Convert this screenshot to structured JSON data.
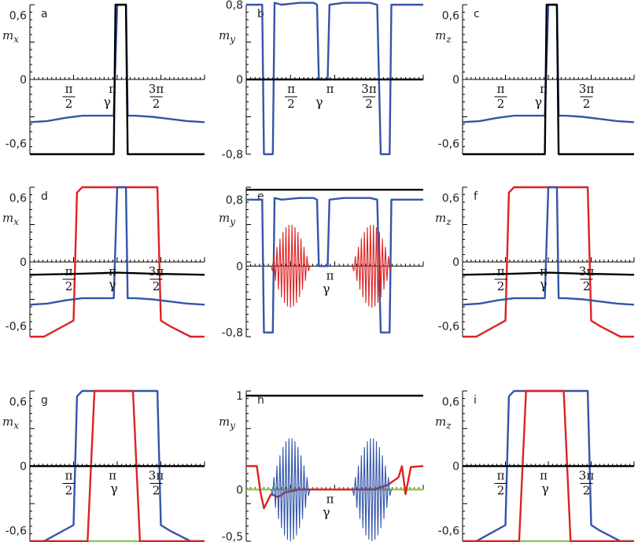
{
  "chart_data": [
    {
      "id": "a",
      "type": "line",
      "ylabel": "m",
      "ylabel_sub": "x",
      "letter": "a",
      "ylim": [
        -0.7,
        0.7
      ],
      "yticks": [
        "0,6",
        "0",
        "-0,6"
      ],
      "ytick_values": [
        0.6,
        0,
        -0.6
      ],
      "xticks": [
        {
          "num": "π",
          "den": "2",
          "x": 0.25
        },
        {
          "num": "π",
          "den": "",
          "x": 0.5
        },
        {
          "num": "3π",
          "den": "2",
          "x": 0.75
        }
      ],
      "gamma_x": 0.46,
      "series": [
        {
          "color": "#3355aa",
          "x": [
            0,
            0.1,
            0.2,
            0.3,
            0.4,
            0.48,
            0.5,
            0.55,
            0.56,
            0.6,
            0.7,
            0.8,
            0.9,
            1.0
          ],
          "y": [
            -0.4,
            -0.39,
            -0.36,
            -0.34,
            -0.34,
            -0.34,
            0.7,
            0.7,
            -0.34,
            -0.34,
            -0.35,
            -0.37,
            -0.39,
            -0.4
          ]
        },
        {
          "color": "#000000",
          "x": [
            0,
            0.48,
            0.49,
            0.55,
            0.56,
            1.0
          ],
          "y": [
            -0.7,
            -0.7,
            0.7,
            0.7,
            -0.7,
            -0.7
          ]
        }
      ]
    },
    {
      "id": "b",
      "type": "line",
      "ylabel": "m",
      "ylabel_sub": "y",
      "letter": "b",
      "ylim": [
        -0.8,
        0.8
      ],
      "yticks": [
        "0,8",
        "0",
        "-0,8"
      ],
      "ytick_values": [
        0.8,
        0,
        -0.8
      ],
      "xticks": [
        {
          "num": "π",
          "den": "2",
          "x": 0.28
        },
        {
          "num": "π",
          "den": "",
          "x": 0.5
        },
        {
          "num": "3π",
          "den": "2",
          "x": 0.72
        }
      ],
      "gamma_x": 0.43,
      "series": [
        {
          "color": "#3355aa",
          "x": [
            0,
            0.09,
            0.1,
            0.15,
            0.16,
            0.2,
            0.3,
            0.38,
            0.4,
            0.41,
            0.46,
            0.47,
            0.55,
            0.7,
            0.74,
            0.76,
            0.81,
            0.82,
            0.85,
            1.0
          ],
          "y": [
            0.8,
            0.8,
            -0.8,
            -0.8,
            0.82,
            0.8,
            0.82,
            0.82,
            0.8,
            0.0,
            0.0,
            0.8,
            0.82,
            0.82,
            0.8,
            -0.8,
            -0.8,
            0.8,
            0.8,
            0.8
          ]
        },
        {
          "color": "#000000",
          "x": [
            0,
            1.0
          ],
          "y": [
            0,
            0
          ]
        }
      ]
    },
    {
      "id": "c",
      "type": "line",
      "ylabel": "m",
      "ylabel_sub": "z",
      "letter": "c",
      "ylim": [
        -0.7,
        0.7
      ],
      "yticks": [
        "0,6",
        "0",
        "-0,6"
      ],
      "ytick_values": [
        0.6,
        0,
        -0.6
      ],
      "xticks": [
        {
          "num": "π",
          "den": "2",
          "x": 0.25
        },
        {
          "num": "π",
          "den": "",
          "x": 0.5
        },
        {
          "num": "3π",
          "den": "2",
          "x": 0.75
        }
      ],
      "gamma_x": 0.46,
      "series": [
        {
          "color": "#3355aa",
          "x": [
            0,
            0.1,
            0.2,
            0.3,
            0.4,
            0.48,
            0.5,
            0.55,
            0.56,
            0.6,
            0.7,
            0.8,
            0.9,
            1.0
          ],
          "y": [
            -0.4,
            -0.39,
            -0.36,
            -0.34,
            -0.34,
            -0.34,
            0.7,
            0.7,
            -0.34,
            -0.34,
            -0.35,
            -0.37,
            -0.39,
            -0.4
          ]
        },
        {
          "color": "#000000",
          "x": [
            0,
            0.48,
            0.49,
            0.55,
            0.56,
            1.0
          ],
          "y": [
            -0.7,
            -0.7,
            0.7,
            0.7,
            -0.7,
            -0.7
          ]
        }
      ]
    },
    {
      "id": "d",
      "type": "line",
      "ylabel": "m",
      "ylabel_sub": "x",
      "letter": "d",
      "ylim": [
        -0.7,
        0.7
      ],
      "yticks": [
        "0,6",
        "0",
        "-0,6"
      ],
      "ytick_values": [
        0.6,
        0,
        -0.6
      ],
      "xticks": [
        {
          "num": "π",
          "den": "2",
          "x": 0.25
        },
        {
          "num": "π",
          "den": "",
          "x": 0.5
        },
        {
          "num": "3π",
          "den": "2",
          "x": 0.75
        }
      ],
      "gamma_x": 0.49,
      "series": [
        {
          "color": "#dd2222",
          "x": [
            0,
            0.08,
            0.25,
            0.27,
            0.3,
            0.4,
            0.7,
            0.73,
            0.75,
            0.8,
            0.92,
            1.0
          ],
          "y": [
            -0.7,
            -0.7,
            -0.55,
            0.65,
            0.7,
            0.7,
            0.7,
            0.7,
            -0.55,
            -0.6,
            -0.7,
            -0.7
          ]
        },
        {
          "color": "#3355aa",
          "x": [
            0,
            0.1,
            0.2,
            0.3,
            0.4,
            0.48,
            0.5,
            0.55,
            0.56,
            0.6,
            0.7,
            0.8,
            0.9,
            1.0
          ],
          "y": [
            -0.4,
            -0.39,
            -0.36,
            -0.34,
            -0.34,
            -0.34,
            0.7,
            0.7,
            -0.34,
            -0.34,
            -0.35,
            -0.37,
            -0.39,
            -0.4
          ]
        },
        {
          "color": "#000000",
          "x": [
            0,
            0.3,
            0.5,
            0.7,
            1.0
          ],
          "y": [
            -0.12,
            -0.11,
            -0.1,
            -0.11,
            -0.12
          ]
        }
      ]
    },
    {
      "id": "e",
      "type": "line",
      "ylabel": "m",
      "ylabel_sub": "y",
      "letter": "e",
      "ylim": [
        -0.85,
        0.95
      ],
      "yticks": [
        "0,8",
        "0",
        "-0,8"
      ],
      "ytick_values": [
        0.8,
        0,
        -0.8
      ],
      "xticks": [
        {
          "num": "π",
          "den": "",
          "x": 0.5
        }
      ],
      "gamma_x": 0.47,
      "osc": "red",
      "series": [
        {
          "color": "#000000",
          "x": [
            0,
            1.0
          ],
          "y": [
            0.92,
            0.92
          ]
        },
        {
          "color": "#3355aa",
          "x": [
            0,
            0.09,
            0.1,
            0.15,
            0.16,
            0.2,
            0.3,
            0.38,
            0.4,
            0.41,
            0.46,
            0.47,
            0.55,
            0.7,
            0.74,
            0.76,
            0.81,
            0.82,
            0.85,
            1.0
          ],
          "y": [
            0.8,
            0.8,
            -0.8,
            -0.8,
            0.82,
            0.8,
            0.82,
            0.82,
            0.8,
            0.0,
            0.0,
            0.8,
            0.82,
            0.82,
            0.8,
            -0.8,
            -0.8,
            0.8,
            0.8,
            0.8
          ]
        }
      ]
    },
    {
      "id": "f",
      "type": "line",
      "ylabel": "m",
      "ylabel_sub": "z",
      "letter": "f",
      "ylim": [
        -0.7,
        0.7
      ],
      "yticks": [
        "0,6",
        "0",
        "-0,6"
      ],
      "ytick_values": [
        0.6,
        0,
        -0.6
      ],
      "xticks": [
        {
          "num": "π",
          "den": "2",
          "x": 0.25
        },
        {
          "num": "π",
          "den": "",
          "x": 0.5
        },
        {
          "num": "3π",
          "den": "2",
          "x": 0.75
        }
      ],
      "gamma_x": 0.49,
      "series": [
        {
          "color": "#dd2222",
          "x": [
            0,
            0.08,
            0.25,
            0.27,
            0.3,
            0.4,
            0.7,
            0.73,
            0.75,
            0.8,
            0.92,
            1.0
          ],
          "y": [
            -0.7,
            -0.7,
            -0.55,
            0.65,
            0.7,
            0.7,
            0.7,
            0.7,
            -0.55,
            -0.6,
            -0.7,
            -0.7
          ]
        },
        {
          "color": "#3355aa",
          "x": [
            0,
            0.1,
            0.2,
            0.3,
            0.4,
            0.48,
            0.5,
            0.55,
            0.56,
            0.6,
            0.7,
            0.8,
            0.9,
            1.0
          ],
          "y": [
            -0.4,
            -0.39,
            -0.36,
            -0.34,
            -0.34,
            -0.34,
            0.7,
            0.7,
            -0.34,
            -0.34,
            -0.35,
            -0.37,
            -0.39,
            -0.4
          ]
        },
        {
          "color": "#000000",
          "x": [
            0,
            0.3,
            0.5,
            0.7,
            1.0
          ],
          "y": [
            -0.12,
            -0.11,
            -0.1,
            -0.11,
            -0.12
          ]
        }
      ]
    },
    {
      "id": "g",
      "type": "line",
      "ylabel": "m",
      "ylabel_sub": "x",
      "letter": "g",
      "ylim": [
        -0.7,
        0.7
      ],
      "yticks": [
        "0,6",
        "0",
        "-0,6"
      ],
      "ytick_values": [
        0.6,
        0,
        -0.6
      ],
      "xticks": [
        {
          "num": "π",
          "den": "2",
          "x": 0.25
        },
        {
          "num": "π",
          "den": "",
          "x": 0.5
        },
        {
          "num": "3π",
          "den": "2",
          "x": 0.75
        }
      ],
      "gamma_x": 0.5,
      "series": [
        {
          "color": "#88cc44",
          "x": [
            0,
            1.0
          ],
          "y": [
            -0.7,
            -0.7
          ]
        },
        {
          "color": "#3355aa",
          "x": [
            0,
            0.08,
            0.25,
            0.27,
            0.3,
            0.4,
            0.7,
            0.73,
            0.75,
            0.8,
            0.92,
            1.0
          ],
          "y": [
            -0.7,
            -0.7,
            -0.55,
            0.65,
            0.7,
            0.7,
            0.7,
            0.7,
            -0.55,
            -0.6,
            -0.7,
            -0.7
          ]
        },
        {
          "color": "#dd2222",
          "x": [
            0,
            0.33,
            0.37,
            0.38,
            0.58,
            0.59,
            0.63,
            1.0
          ],
          "y": [
            -0.7,
            -0.7,
            0.7,
            0.7,
            0.7,
            0.7,
            -0.7,
            -0.7
          ]
        },
        {
          "color": "#000000",
          "x": [
            0,
            1.0
          ],
          "y": [
            0,
            0
          ]
        }
      ]
    },
    {
      "id": "h",
      "type": "line",
      "ylabel": "m",
      "ylabel_sub": "y",
      "letter": "h",
      "ylim": [
        -0.55,
        1.05
      ],
      "yticks": [
        "1",
        "0",
        "-0,5"
      ],
      "ytick_values": [
        1,
        0,
        -0.5
      ],
      "xticks": [
        {
          "num": "π",
          "den": "",
          "x": 0.5
        }
      ],
      "gamma_x": 0.47,
      "osc": "blue",
      "series": [
        {
          "color": "#000000",
          "x": [
            0,
            1.0
          ],
          "y": [
            1.0,
            1.0
          ]
        },
        {
          "color": "#88cc44",
          "x": [
            0,
            1.0
          ],
          "y": [
            0.0,
            0.0
          ]
        },
        {
          "color": "#dd2222",
          "x": [
            0,
            0.06,
            0.08,
            0.1,
            0.14,
            0.18,
            0.22,
            0.3,
            0.5,
            0.6,
            0.72,
            0.8,
            0.86,
            0.88,
            0.9,
            0.93,
            1.0
          ],
          "y": [
            0.25,
            0.25,
            -0.02,
            -0.2,
            -0.05,
            -0.08,
            -0.03,
            0.0,
            0.0,
            0.0,
            0.0,
            0.05,
            0.13,
            0.25,
            -0.05,
            0.24,
            0.25
          ]
        }
      ]
    },
    {
      "id": "i",
      "type": "line",
      "ylabel": "m",
      "ylabel_sub": "z",
      "letter": "i",
      "ylim": [
        -0.7,
        0.7
      ],
      "yticks": [
        "0,6",
        "0",
        "-0,6"
      ],
      "ytick_values": [
        0.6,
        0,
        -0.6
      ],
      "xticks": [
        {
          "num": "π",
          "den": "2",
          "x": 0.25
        },
        {
          "num": "π",
          "den": "",
          "x": 0.5
        },
        {
          "num": "3π",
          "den": "2",
          "x": 0.75
        }
      ],
      "gamma_x": 0.5,
      "series": [
        {
          "color": "#88cc44",
          "x": [
            0,
            1.0
          ],
          "y": [
            -0.7,
            -0.7
          ]
        },
        {
          "color": "#3355aa",
          "x": [
            0,
            0.08,
            0.25,
            0.27,
            0.3,
            0.4,
            0.7,
            0.73,
            0.75,
            0.8,
            0.92,
            1.0
          ],
          "y": [
            -0.7,
            -0.7,
            -0.55,
            0.65,
            0.7,
            0.7,
            0.7,
            0.7,
            -0.55,
            -0.6,
            -0.7,
            -0.7
          ]
        },
        {
          "color": "#dd2222",
          "x": [
            0,
            0.33,
            0.37,
            0.38,
            0.58,
            0.59,
            0.63,
            1.0
          ],
          "y": [
            -0.7,
            -0.7,
            0.7,
            0.7,
            0.7,
            0.7,
            -0.7,
            -0.7
          ]
        },
        {
          "color": "#000000",
          "x": [
            0,
            1.0
          ],
          "y": [
            0,
            0
          ]
        }
      ]
    }
  ]
}
